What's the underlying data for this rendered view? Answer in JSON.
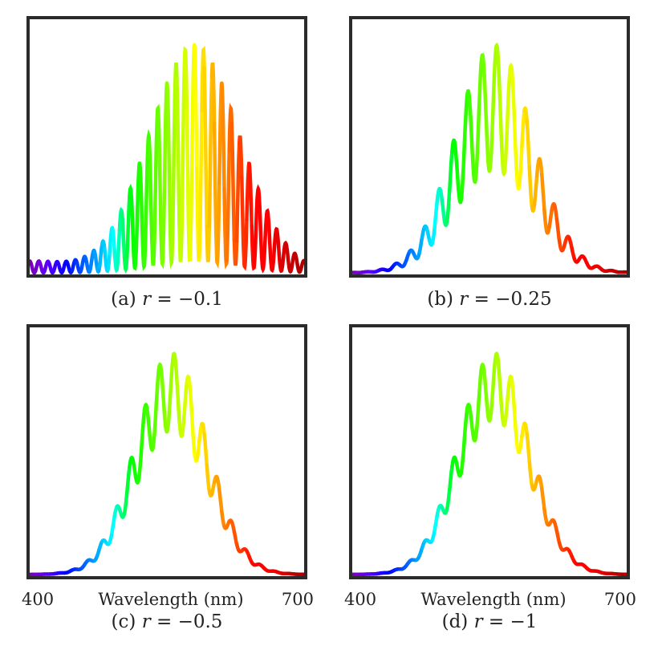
{
  "figure": {
    "wavelength_unit": "nm"
  },
  "chart_data": [
    {
      "type": "line",
      "panel": "a",
      "caption_prefix": "(a)",
      "caption_var": "r",
      "caption_value": "= −0.1",
      "r": -0.1,
      "x_range": [
        400,
        700
      ],
      "y_range": [
        0,
        1
      ],
      "envelope": {
        "center_nm": 580,
        "width_nm": 70,
        "baseline": 0.0
      },
      "fringes": {
        "cycles": 30,
        "depth": 0.95,
        "floor": 0.06
      },
      "tail_left_amp": 0.05,
      "xlabel": "",
      "show_x_ticks": false
    },
    {
      "type": "line",
      "panel": "b",
      "caption_prefix": "(b)",
      "caption_var": "r",
      "caption_value": "= −0.25",
      "r": -0.25,
      "x_range": [
        400,
        700
      ],
      "y_range": [
        0,
        1
      ],
      "envelope": {
        "center_nm": 555,
        "width_nm": 60,
        "baseline": 0.0
      },
      "fringes": {
        "cycles": 19,
        "depth": 0.55,
        "floor": 0.0
      },
      "tail_left_amp": 0.0,
      "xlabel": "",
      "show_x_ticks": false
    },
    {
      "type": "line",
      "panel": "c",
      "caption_prefix": "(c)",
      "caption_var": "r",
      "caption_value": "= −0.5",
      "r": -0.5,
      "x_range": [
        400,
        700
      ],
      "y_range": [
        0,
        1
      ],
      "envelope": {
        "center_nm": 555,
        "width_nm": 55,
        "baseline": 0.0
      },
      "fringes": {
        "cycles": 19,
        "depth": 0.35,
        "floor": 0.0
      },
      "tail_left_amp": 0.0,
      "xlabel": "Wavelength (nm)",
      "show_x_ticks": true,
      "x_ticks": [
        "400",
        "700"
      ]
    },
    {
      "type": "line",
      "panel": "d",
      "caption_prefix": "(d)",
      "caption_var": "r",
      "caption_value": "= −1",
      "r": -1,
      "x_range": [
        400,
        700
      ],
      "y_range": [
        0,
        1
      ],
      "envelope": {
        "center_nm": 555,
        "width_nm": 55,
        "baseline": 0.0
      },
      "fringes": {
        "cycles": 19,
        "depth": 0.3,
        "floor": 0.0
      },
      "tail_left_amp": 0.0,
      "xlabel": "Wavelength (nm)",
      "show_x_ticks": true,
      "x_ticks": [
        "400",
        "700"
      ]
    }
  ]
}
